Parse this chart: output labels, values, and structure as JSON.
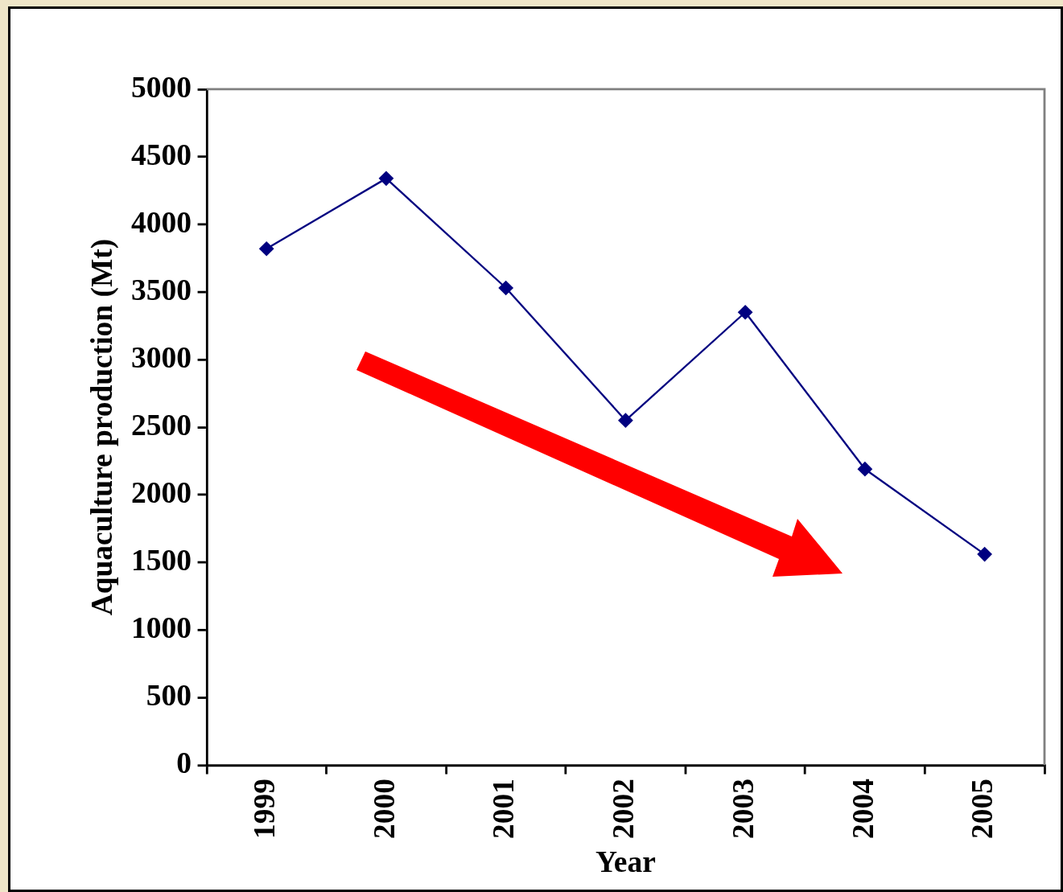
{
  "chart_data": {
    "type": "line",
    "xlabel": "Year",
    "ylabel": "Aquaculture production (Mt)",
    "categories": [
      "1999",
      "2000",
      "2001",
      "2002",
      "2003",
      "2004",
      "2005"
    ],
    "series": [
      {
        "color": "#000080",
        "values": [
          3820,
          4340,
          3530,
          2550,
          3350,
          2190,
          1560
        ]
      }
    ],
    "ylim": [
      0,
      5000
    ],
    "yticks": [
      0,
      500,
      1000,
      1500,
      2000,
      2500,
      3000,
      3500,
      4000,
      4500,
      5000
    ],
    "grid": false,
    "legend": false,
    "marker": "diamond",
    "line_style": "solid"
  }
}
